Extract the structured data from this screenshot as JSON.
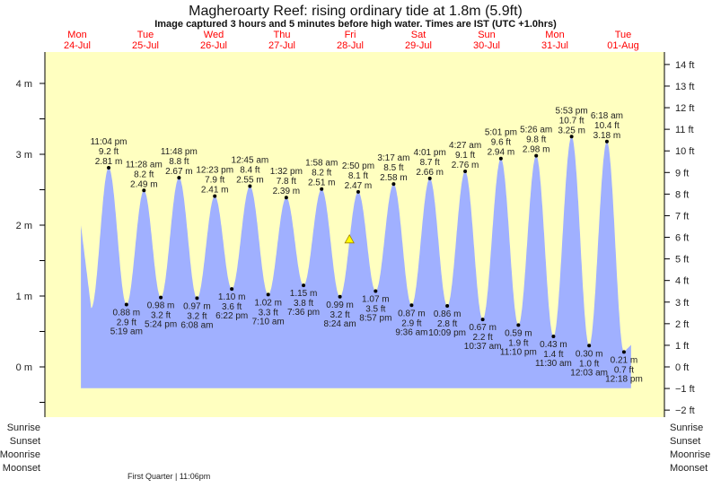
{
  "chart_data": {
    "type": "area",
    "title": "Magheroarty Reef: rising  ordinary tide at 1.8m (5.9ft)",
    "subtitle": "Image captured 3 hours and 5 minutes before high water. Times are IST (UTC +1.0hrs)",
    "days": [
      {
        "dow": "Mon",
        "date": "24-Jul"
      },
      {
        "dow": "Tue",
        "date": "25-Jul"
      },
      {
        "dow": "Wed",
        "date": "26-Jul"
      },
      {
        "dow": "Thu",
        "date": "27-Jul"
      },
      {
        "dow": "Fri",
        "date": "28-Jul"
      },
      {
        "dow": "Sat",
        "date": "29-Jul"
      },
      {
        "dow": "Sun",
        "date": "30-Jul"
      },
      {
        "dow": "Mon",
        "date": "31-Jul"
      },
      {
        "dow": "Tue",
        "date": "01-Aug"
      }
    ],
    "y_left_ticks": [
      "0 m",
      "1 m",
      "2 m",
      "3 m",
      "4 m"
    ],
    "y_right_ticks": [
      "−2 ft",
      "−1 ft",
      "0 ft",
      "1 ft",
      "2 ft",
      "3 ft",
      "4 ft",
      "5 ft",
      "6 ft",
      "7 ft",
      "8 ft",
      "9 ft",
      "10 ft",
      "11 ft",
      "12 ft",
      "13 ft",
      "14 ft"
    ],
    "ylim_m": [
      -0.6,
      4.5
    ],
    "colors": {
      "water": "#a0b0ff",
      "background": "#ffffc0",
      "day_labels": "#ff0000",
      "marker": "#ffff00"
    },
    "extremes": [
      {
        "type": "high",
        "day": 0,
        "time": "11:04 pm",
        "ft": "9.2 ft",
        "m": 2.81
      },
      {
        "type": "low",
        "day": 1,
        "time": "5:19 am",
        "ft": "2.9 ft",
        "m": 0.88
      },
      {
        "type": "high",
        "day": 1,
        "time": "11:28 am",
        "ft": "8.2 ft",
        "m": 2.49
      },
      {
        "type": "low",
        "day": 1,
        "time": "5:24 pm",
        "ft": "3.2 ft",
        "m": 0.98
      },
      {
        "type": "high",
        "day": 1,
        "time": "11:48 pm",
        "ft": "8.8 ft",
        "m": 2.67
      },
      {
        "type": "low",
        "day": 2,
        "time": "6:08 am",
        "ft": "3.2 ft",
        "m": 0.97
      },
      {
        "type": "high",
        "day": 2,
        "time": "12:23 pm",
        "ft": "7.9 ft",
        "m": 2.41
      },
      {
        "type": "low",
        "day": 2,
        "time": "6:22 pm",
        "ft": "3.6 ft",
        "m": 1.1
      },
      {
        "type": "high",
        "day": 3,
        "time": "12:45 am",
        "ft": "8.4 ft",
        "m": 2.55
      },
      {
        "type": "low",
        "day": 3,
        "time": "7:10 am",
        "ft": "3.3 ft",
        "m": 1.02
      },
      {
        "type": "high",
        "day": 3,
        "time": "1:32 pm",
        "ft": "7.8 ft",
        "m": 2.39
      },
      {
        "type": "low",
        "day": 3,
        "time": "7:36 pm",
        "ft": "3.8 ft",
        "m": 1.15
      },
      {
        "type": "high",
        "day": 4,
        "time": "1:58 am",
        "ft": "8.2 ft",
        "m": 2.51
      },
      {
        "type": "low",
        "day": 4,
        "time": "8:24 am",
        "ft": "3.2 ft",
        "m": 0.99
      },
      {
        "type": "high",
        "day": 4,
        "time": "2:50 pm",
        "ft": "8.1 ft",
        "m": 2.47
      },
      {
        "type": "low",
        "day": 4,
        "time": "8:57 pm",
        "ft": "3.5 ft",
        "m": 1.07
      },
      {
        "type": "high",
        "day": 5,
        "time": "3:17 am",
        "ft": "8.5 ft",
        "m": 2.58
      },
      {
        "type": "low",
        "day": 5,
        "time": "9:36 am",
        "ft": "2.9 ft",
        "m": 0.87
      },
      {
        "type": "high",
        "day": 5,
        "time": "4:01 pm",
        "ft": "8.7 ft",
        "m": 2.66
      },
      {
        "type": "low",
        "day": 5,
        "time": "10:09 pm",
        "ft": "2.8 ft",
        "m": 0.86
      },
      {
        "type": "high",
        "day": 6,
        "time": "4:27 am",
        "ft": "9.1 ft",
        "m": 2.76
      },
      {
        "type": "low",
        "day": 6,
        "time": "10:37 am",
        "ft": "2.2 ft",
        "m": 0.67
      },
      {
        "type": "high",
        "day": 6,
        "time": "5:01 pm",
        "ft": "9.6 ft",
        "m": 2.94
      },
      {
        "type": "low",
        "day": 6,
        "time": "11:10 pm",
        "ft": "1.9 ft",
        "m": 0.59
      },
      {
        "type": "high",
        "day": 7,
        "time": "5:26 am",
        "ft": "9.8 ft",
        "m": 2.98
      },
      {
        "type": "low",
        "day": 7,
        "time": "11:30 am",
        "ft": "1.4 ft",
        "m": 0.43
      },
      {
        "type": "high",
        "day": 7,
        "time": "5:53 pm",
        "ft": "10.7 ft",
        "m": 3.25
      },
      {
        "type": "low",
        "day": 8,
        "time": "12:03 am",
        "ft": "1.0 ft",
        "m": 0.3
      },
      {
        "type": "high",
        "day": 8,
        "time": "6:18 am",
        "ft": "10.4 ft",
        "m": 3.18
      },
      {
        "type": "low",
        "day": 8,
        "time": "12:18 pm",
        "ft": "0.7 ft",
        "m": 0.21
      }
    ],
    "current": {
      "day": 4,
      "time": "11:45 am",
      "m": 1.8
    }
  },
  "astro": {
    "rows": [
      "Sunrise",
      "Sunset",
      "Moonrise",
      "Moonset"
    ],
    "moon_phase": "First Quarter | 11:06pm"
  }
}
